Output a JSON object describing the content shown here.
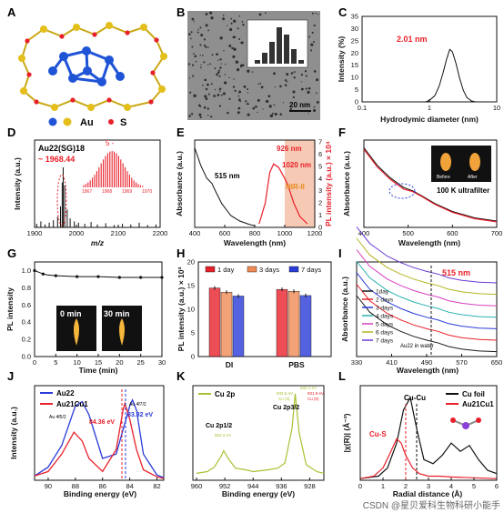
{
  "colors": {
    "red": "#e8202a",
    "blue": "#2a3bd8",
    "black": "#111111",
    "gold": "#e4bf1b",
    "au": "#1f54d6",
    "s": "#e8202a",
    "green": "#a7c233",
    "nir": "#f6c9b4",
    "gray": "#8a8a8a"
  },
  "panel_letters": [
    "A",
    "B",
    "C",
    "D",
    "E",
    "F",
    "G",
    "H",
    "I",
    "J",
    "K",
    "L"
  ],
  "watermark": "CSDN @星贝爱科生物科研小能手",
  "chart_data": [
    {
      "panel": "A",
      "type": "other",
      "legend": [
        {
          "label": "Au",
          "color": "#e4bf1b"
        },
        {
          "label": "S",
          "color": "#e8202a"
        }
      ]
    },
    {
      "panel": "B",
      "type": "bar",
      "scalebar": "20 nm",
      "inset": {
        "type": "histogram",
        "values": [
          1,
          3,
          6,
          10,
          8,
          4,
          1
        ]
      }
    },
    {
      "panel": "C",
      "type": "line",
      "xlabel": "Hydrodymic diameter (nm)",
      "ylabel": "Intensity (%)",
      "xscale": "log",
      "xlim": [
        0.1,
        10
      ],
      "ylim": [
        0,
        35
      ],
      "xticks": [
        "0.1",
        "1",
        "10"
      ],
      "yticks": [
        "0",
        "5",
        "10",
        "15",
        "20",
        "25",
        "30",
        "35"
      ],
      "annotation": "2.01 nm",
      "series": [
        {
          "x": [
            0.88,
            1.0,
            1.2,
            1.4,
            1.6,
            1.8,
            2.01,
            2.2,
            2.5,
            2.8,
            3.2,
            3.6,
            4.2,
            4.8
          ],
          "y": [
            0,
            0.6,
            2.5,
            6.5,
            12,
            17.5,
            21.5,
            20.5,
            15.5,
            9.8,
            4.6,
            1.8,
            0.4,
            0
          ]
        }
      ]
    },
    {
      "panel": "D",
      "type": "bar",
      "title": "Au22(SG)18",
      "annotation": "~ 1968.44",
      "inset_label": "5 -",
      "inset_ticks": [
        "1967",
        "1968",
        "1969",
        "1970"
      ],
      "xlabel": "m/z",
      "ylabel": "Intensity (a.u.)",
      "xlim": [
        1900,
        2200
      ],
      "xticks": [
        "1900",
        "2000",
        "2100",
        "2200"
      ],
      "series": [
        {
          "x": [
            1905,
            1915,
            1925,
            1935,
            1945,
            1955,
            1962,
            1966,
            1968.4,
            1972,
            1978,
            1985,
            1995,
            2005,
            2020,
            2035,
            2050,
            2070,
            2090,
            2110,
            2130,
            2150,
            2170,
            2190
          ],
          "y": [
            0.06,
            0.1,
            0.05,
            0.08,
            0.12,
            0.18,
            0.35,
            0.75,
            1.0,
            0.7,
            0.3,
            0.15,
            0.1,
            0.08,
            0.06,
            0.09,
            0.05,
            0.07,
            0.04,
            0.06,
            0.05,
            0.08,
            0.04,
            0.05
          ]
        }
      ]
    },
    {
      "panel": "E",
      "type": "line",
      "xlabel": "Wavelength (nm)",
      "ylabel": "Absorbance (a.u.)",
      "ylabel_right": "PL intensity (a.u.) × 10⁴",
      "xlim": [
        400,
        1200
      ],
      "xticks": [
        "400",
        "600",
        "800",
        "1000",
        "1200"
      ],
      "yticks_right": [
        "0",
        "1",
        "2",
        "3",
        "4",
        "5",
        "6",
        "7"
      ],
      "annotations": [
        "515 nm",
        "926 nm",
        "1020 nm",
        "NIR-II"
      ],
      "region": [
        1000,
        1200
      ],
      "series": [
        {
          "x": [
            400,
            440,
            480,
            515,
            540,
            580,
            640,
            700,
            760,
            800
          ],
          "y": [
            1.0,
            0.78,
            0.62,
            0.55,
            0.45,
            0.3,
            0.15,
            0.08,
            0.04,
            0.02
          ]
        },
        {
          "x": [
            830,
            870,
            900,
            926,
            960,
            1000,
            1020,
            1060,
            1100,
            1150
          ],
          "y": [
            0.3,
            2.0,
            4.5,
            5.2,
            4.9,
            4.0,
            3.5,
            2.0,
            0.9,
            0.3
          ]
        }
      ]
    },
    {
      "panel": "F",
      "type": "line",
      "xlabel": "Wavelength (nm)",
      "ylabel": "Absorbance (a.u.)",
      "xlim": [
        400,
        700
      ],
      "xticks": [
        "400",
        "500",
        "600",
        "700"
      ],
      "inset_labels": [
        "Before",
        "After"
      ],
      "annotation": "100 K ultrafilter",
      "series": [
        {
          "x": [
            400,
            430,
            460,
            490,
            510,
            530,
            560,
            600,
            650,
            700
          ],
          "y": [
            1.0,
            0.78,
            0.62,
            0.5,
            0.46,
            0.4,
            0.3,
            0.2,
            0.12,
            0.08
          ]
        },
        {
          "x": [
            400,
            430,
            460,
            490,
            510,
            530,
            560,
            600,
            650,
            700
          ],
          "y": [
            0.98,
            0.76,
            0.6,
            0.48,
            0.45,
            0.39,
            0.29,
            0.19,
            0.11,
            0.07
          ]
        }
      ]
    },
    {
      "panel": "G",
      "type": "line",
      "xlabel": "Time (min)",
      "ylabel": "PL intensity",
      "xlim": [
        0,
        30
      ],
      "ylim": [
        0,
        1.0
      ],
      "xticks": [
        "0",
        "5",
        "10",
        "15",
        "20",
        "25",
        "30"
      ],
      "yticks": [
        "0.0",
        "0.2",
        "0.4",
        "0.6",
        "0.8",
        "1.0"
      ],
      "insets": [
        "0 min",
        "30 min"
      ],
      "series": [
        {
          "x": [
            0,
            1,
            2,
            3,
            5,
            10,
            15,
            20,
            25,
            30
          ],
          "y": [
            1.0,
            0.98,
            0.96,
            0.95,
            0.94,
            0.93,
            0.93,
            0.92,
            0.92,
            0.92
          ]
        }
      ]
    },
    {
      "panel": "H",
      "type": "bar",
      "xlabel": "",
      "ylabel": "PL intensity (a.u.) × 10³",
      "categories": [
        "DI",
        "PBS"
      ],
      "ylim": [
        0,
        20
      ],
      "yticks": [
        "0",
        "5",
        "10",
        "15",
        "20"
      ],
      "series": [
        {
          "name": "1 day",
          "values": [
            14.5,
            14.2
          ],
          "color": "#e8202a"
        },
        {
          "name": "3 days",
          "values": [
            13.6,
            13.8
          ],
          "color": "#f08a55"
        },
        {
          "name": "7 days",
          "values": [
            12.8,
            12.9
          ],
          "color": "#2a3bd8"
        }
      ]
    },
    {
      "panel": "I",
      "type": "line",
      "xlabel": "Wavelength (nm)",
      "ylabel": "Absorbance (a.u.)",
      "xlim": [
        330,
        650
      ],
      "xticks": [
        "330",
        "410",
        "490",
        "570",
        "650"
      ],
      "annotation": "515 nm",
      "note": "Au22 in water",
      "series": [
        {
          "name": "1day",
          "color": "#1b1b1b",
          "offset": 0
        },
        {
          "name": "2 days",
          "color": "#e8202a",
          "offset": 0.09
        },
        {
          "name": "3 days",
          "color": "#2a3bd8",
          "offset": 0.18
        },
        {
          "name": "4 days",
          "color": "#2bb3b0",
          "offset": 0.27
        },
        {
          "name": "5 days",
          "color": "#d63fbf",
          "offset": 0.36
        },
        {
          "name": "6 days",
          "color": "#b5b522",
          "offset": 0.45
        },
        {
          "name": "7 days",
          "color": "#6a3ad4",
          "offset": 0.54
        }
      ]
    },
    {
      "panel": "J",
      "type": "line",
      "xlabel": "Binding energy (eV)",
      "ylabel": "Intensity (a.u.)",
      "xlim": [
        91,
        81.5
      ],
      "xticks": [
        "90",
        "88",
        "86",
        "84",
        "82"
      ],
      "annotations": [
        "84.36 eV",
        "83.82 eV",
        "Au 4f7/2",
        "Au 4f5/2"
      ],
      "series": [
        {
          "name": "Au22",
          "color": "#2a3bd8",
          "x": [
            91,
            90,
            89,
            88,
            87.5,
            87,
            86,
            85,
            84,
            83.8,
            83.5,
            83,
            82,
            81.5
          ],
          "y": [
            0.05,
            0.15,
            0.4,
            0.85,
            0.9,
            0.75,
            0.25,
            0.3,
            0.85,
            0.92,
            0.8,
            0.3,
            0.06,
            0.03
          ]
        },
        {
          "name": "Au21Cu1",
          "color": "#e8202a",
          "x": [
            91,
            90,
            89,
            88.1,
            87.5,
            87,
            86,
            85,
            84.5,
            84.36,
            84,
            83.5,
            83,
            82,
            81.5
          ],
          "y": [
            0.05,
            0.1,
            0.3,
            0.55,
            0.45,
            0.25,
            0.1,
            0.35,
            0.8,
            0.88,
            0.7,
            0.35,
            0.12,
            0.04,
            0.02
          ]
        }
      ]
    },
    {
      "panel": "K",
      "type": "line",
      "xlabel": "Binding energy (eV)",
      "xlim": [
        960,
        924
      ],
      "xticks": [
        "960",
        "952",
        "944",
        "936",
        "928"
      ],
      "labels": [
        "Cu 2p",
        "Cu 2p1/2",
        "Cu 2p3/2",
        "952.3 eV",
        "932.1 eV",
        "932.6 eV",
        "Cu (II)",
        "Cu (0)",
        "931.9 eV"
      ],
      "series": [
        {
          "name": "Cu 2p",
          "color": "#a7c233",
          "x": [
            960,
            957,
            955,
            953,
            952.3,
            951,
            949,
            946,
            944,
            940,
            937,
            935,
            933,
            932.1,
            931,
            929,
            926,
            924
          ],
          "y": [
            0.08,
            0.1,
            0.15,
            0.28,
            0.34,
            0.25,
            0.14,
            0.12,
            0.1,
            0.12,
            0.14,
            0.2,
            0.6,
            1.0,
            0.55,
            0.18,
            0.1,
            0.08
          ]
        }
      ]
    },
    {
      "panel": "L",
      "type": "line",
      "xlabel": "Radial distance (Å)",
      "ylabel": "|χ(R)| (Å⁻³)",
      "xlim": [
        0,
        6
      ],
      "xticks": [
        "0",
        "1",
        "2",
        "3",
        "4",
        "5",
        "6"
      ],
      "labels": [
        "Cu-Cu",
        "Cu-S"
      ],
      "series": [
        {
          "name": "Cu foil",
          "color": "#111111",
          "x": [
            0,
            0.8,
            1.2,
            1.6,
            1.9,
            2.2,
            2.5,
            2.8,
            3.2,
            3.6,
            4.0,
            4.4,
            4.8,
            5.2,
            5.6,
            6
          ],
          "y": [
            0.02,
            0.05,
            0.15,
            0.45,
            0.85,
            1.0,
            0.6,
            0.25,
            0.2,
            0.3,
            0.45,
            0.35,
            0.42,
            0.25,
            0.12,
            0.08
          ]
        },
        {
          "name": "Au21Cu1",
          "color": "#e8202a",
          "x": [
            0,
            0.6,
            1.0,
            1.3,
            1.6,
            1.8,
            2.0,
            2.3,
            2.6,
            3.0,
            3.5,
            4,
            5,
            6
          ],
          "y": [
            0.02,
            0.05,
            0.15,
            0.32,
            0.5,
            0.45,
            0.3,
            0.15,
            0.08,
            0.05,
            0.05,
            0.04,
            0.03,
            0.02
          ]
        }
      ]
    }
  ]
}
